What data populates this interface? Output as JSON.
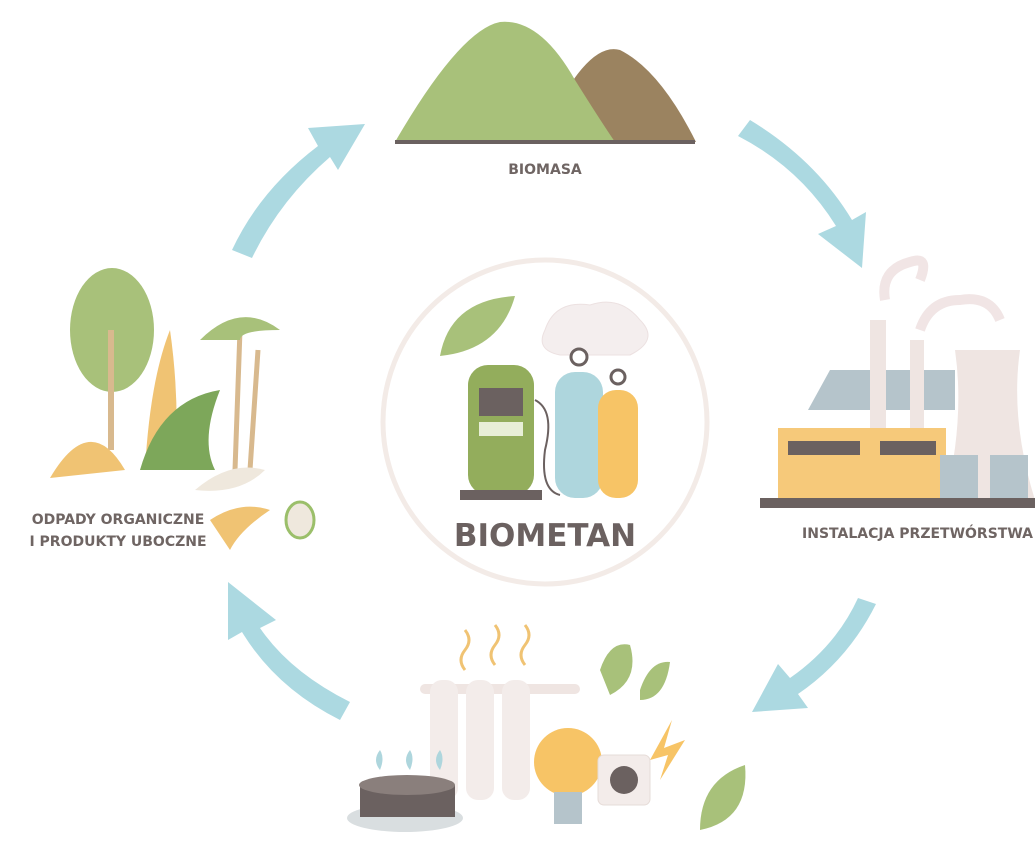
{
  "center": {
    "label": "BIOMETAN"
  },
  "nodes": [
    {
      "label": "BIOMASA"
    },
    {
      "label": "INSTALACJA PRZETWÓRSTWA"
    },
    {
      "lines": [
        "ODPADY ORGANICZNE",
        "I PRODUKTY UBOCZNE"
      ]
    }
  ]
}
